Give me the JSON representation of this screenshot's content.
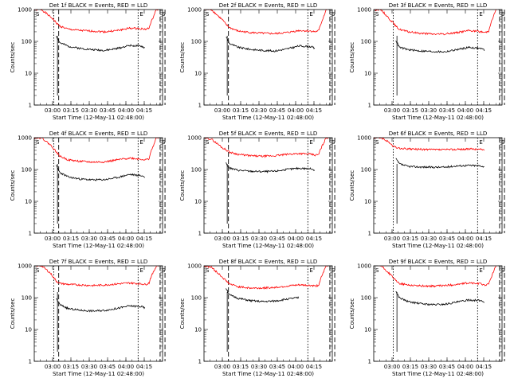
{
  "figure": {
    "ylabel": "Counts/sec",
    "xlabel": "Start Time (12-May-11 02:48:00)",
    "ytick_labels": [
      "1",
      "10",
      "100",
      "1000"
    ],
    "xtick_labels": [
      "03:00",
      "03:15",
      "03:30",
      "03:45",
      "04:00",
      "04:15"
    ],
    "marker_s": "S",
    "marker_e": "E",
    "colors": {
      "events": "#000000",
      "lld": "#ff0000",
      "axes": "#000000",
      "background": "#ffffff"
    }
  },
  "chart_data": [
    {
      "type": "line",
      "title": "Det 1f BLACK = Events, RED = LLD",
      "ylog": true,
      "ylim": [
        1,
        1000
      ],
      "xlim_minutes": [
        -3,
        102
      ],
      "x_minutes": [
        -3,
        3,
        10,
        12,
        15,
        18,
        25,
        35,
        45,
        55,
        65,
        75,
        85,
        88,
        91,
        92,
        97,
        99
      ],
      "series": [
        {
          "name": "",
          "values": [
            1000,
            1000,
            600,
            520,
            380,
            300,
            240,
            220,
            210,
            200,
            220,
            260,
            250,
            240,
            260,
            350,
            1000,
            1000
          ]
        },
        {
          "name": "",
          "values": [
            null,
            null,
            null,
            null,
            150,
            90,
            70,
            60,
            55,
            52,
            60,
            75,
            70,
            60,
            null,
            null,
            null,
            null
          ]
        }
      ],
      "markers_min": [
        13,
        17,
        82,
        100,
        104
      ]
    },
    {
      "type": "line",
      "title": "Det 2f BLACK = Events, RED = LLD",
      "ylog": true,
      "ylim": [
        1,
        1000
      ],
      "xlim_minutes": [
        -3,
        102
      ],
      "x_minutes": [
        -3,
        3,
        10,
        12,
        15,
        18,
        25,
        35,
        45,
        55,
        65,
        75,
        85,
        88,
        91,
        92,
        97,
        99
      ],
      "series": [
        {
          "name": "",
          "values": [
            1000,
            1000,
            560,
            480,
            340,
            270,
            210,
            190,
            180,
            175,
            190,
            220,
            210,
            200,
            220,
            300,
            1000,
            1000
          ]
        },
        {
          "name": "",
          "values": [
            null,
            null,
            null,
            null,
            140,
            85,
            65,
            56,
            52,
            50,
            58,
            72,
            68,
            58,
            null,
            null,
            null,
            null
          ]
        }
      ],
      "markers_min": [
        17,
        82,
        100,
        104
      ]
    },
    {
      "type": "line",
      "title": "Det 3f BLACK = Events, RED = LLD",
      "ylog": true,
      "ylim": [
        1,
        1000
      ],
      "xlim_minutes": [
        -3,
        102
      ],
      "x_minutes": [
        -3,
        3,
        10,
        12,
        15,
        18,
        25,
        35,
        45,
        55,
        65,
        75,
        85,
        88,
        91,
        92,
        97,
        99
      ],
      "series": [
        {
          "name": "",
          "values": [
            1000,
            1000,
            500,
            420,
            300,
            240,
            200,
            180,
            170,
            170,
            190,
            220,
            200,
            190,
            210,
            300,
            1000,
            1000
          ]
        },
        {
          "name": "",
          "values": [
            null,
            null,
            null,
            null,
            110,
            65,
            55,
            50,
            48,
            47,
            55,
            65,
            60,
            52,
            null,
            null,
            null,
            null
          ]
        }
      ],
      "markers_min": [
        13,
        82,
        100,
        104
      ]
    },
    {
      "type": "line",
      "title": "Det 4f BLACK = Events, RED = LLD",
      "ylog": true,
      "ylim": [
        1,
        1000
      ],
      "xlim_minutes": [
        -3,
        102
      ],
      "x_minutes": [
        -3,
        3,
        10,
        12,
        15,
        18,
        25,
        35,
        45,
        55,
        65,
        75,
        85,
        88,
        91,
        92,
        97,
        99
      ],
      "series": [
        {
          "name": "",
          "values": [
            1000,
            1000,
            600,
            500,
            360,
            260,
            200,
            180,
            170,
            175,
            200,
            230,
            210,
            200,
            220,
            320,
            1000,
            1000
          ]
        },
        {
          "name": "",
          "values": [
            null,
            null,
            null,
            null,
            130,
            80,
            58,
            50,
            47,
            48,
            56,
            70,
            64,
            56,
            null,
            null,
            null,
            null
          ]
        }
      ],
      "markers_min": [
        13,
        17,
        82,
        100,
        104
      ]
    },
    {
      "type": "line",
      "title": "Det 5f BLACK = Events, RED = LLD",
      "ylog": true,
      "ylim": [
        1,
        1000
      ],
      "xlim_minutes": [
        -3,
        102
      ],
      "x_minutes": [
        -3,
        3,
        10,
        12,
        15,
        18,
        25,
        35,
        45,
        55,
        65,
        75,
        85,
        88,
        91,
        92,
        97,
        99
      ],
      "series": [
        {
          "name": "",
          "values": [
            1000,
            900,
            560,
            480,
            420,
            350,
            300,
            270,
            260,
            270,
            300,
            320,
            300,
            280,
            300,
            400,
            1000,
            1000
          ]
        },
        {
          "name": "",
          "values": [
            null,
            null,
            null,
            null,
            160,
            110,
            95,
            88,
            86,
            88,
            100,
            110,
            105,
            95,
            null,
            null,
            null,
            null
          ]
        }
      ],
      "markers_min": [
        17,
        82,
        100,
        104
      ]
    },
    {
      "type": "line",
      "title": "Det 6f BLACK = Events, RED = LLD",
      "ylog": true,
      "ylim": [
        1,
        1000
      ],
      "xlim_minutes": [
        -3,
        102
      ],
      "x_minutes": [
        -3,
        3,
        10,
        12,
        15,
        18,
        25,
        35,
        45,
        55,
        65,
        75,
        85,
        88,
        91,
        92,
        97,
        99
      ],
      "series": [
        {
          "name": "",
          "values": [
            1000,
            1000,
            700,
            560,
            500,
            460,
            440,
            430,
            420,
            420,
            430,
            440,
            430,
            420,
            null,
            null,
            null,
            null
          ]
        },
        {
          "name": "",
          "values": [
            null,
            null,
            null,
            null,
            220,
            150,
            125,
            120,
            118,
            118,
            130,
            135,
            130,
            118,
            null,
            null,
            null,
            null
          ]
        }
      ],
      "markers_min": [
        13,
        82,
        100,
        104
      ]
    },
    {
      "type": "line",
      "title": "Det 7f BLACK = Events, RED = LLD",
      "ylog": true,
      "ylim": [
        1,
        1000
      ],
      "xlim_minutes": [
        -3,
        102
      ],
      "x_minutes": [
        -3,
        3,
        10,
        12,
        15,
        18,
        25,
        35,
        45,
        55,
        65,
        75,
        85,
        88,
        91,
        92,
        97,
        99
      ],
      "series": [
        {
          "name": "",
          "values": [
            1000,
            1000,
            600,
            480,
            330,
            280,
            260,
            250,
            240,
            250,
            270,
            290,
            270,
            260,
            290,
            400,
            1000,
            1000
          ]
        },
        {
          "name": "",
          "values": [
            null,
            null,
            null,
            null,
            95,
            60,
            45,
            40,
            38,
            40,
            46,
            55,
            52,
            46,
            null,
            null,
            null,
            null
          ]
        }
      ],
      "markers_min": [
        13,
        17,
        82,
        100,
        104
      ]
    },
    {
      "type": "line",
      "title": "Det 8f BLACK = Events, RED = LLD",
      "ylog": true,
      "ylim": [
        1,
        1000
      ],
      "xlim_minutes": [
        -3,
        102
      ],
      "x_minutes": [
        -3,
        3,
        10,
        12,
        15,
        18,
        25,
        35,
        45,
        55,
        65,
        75,
        85,
        88,
        91,
        92,
        97,
        99
      ],
      "series": [
        {
          "name": "",
          "values": [
            1000,
            900,
            520,
            440,
            340,
            270,
            220,
            200,
            200,
            210,
            230,
            250,
            240,
            230,
            250,
            350,
            1000,
            1000
          ]
        },
        {
          "name": "",
          "values": [
            null,
            null,
            null,
            null,
            200,
            120,
            95,
            80,
            75,
            78,
            90,
            100,
            null,
            null,
            null,
            null,
            null,
            null
          ]
        }
      ],
      "markers_min": [
        17,
        82,
        100,
        104
      ]
    },
    {
      "type": "line",
      "title": "Det 9f BLACK = Events, RED = LLD",
      "ylog": true,
      "ylim": [
        1,
        1000
      ],
      "xlim_minutes": [
        -3,
        102
      ],
      "x_minutes": [
        -3,
        3,
        10,
        12,
        15,
        18,
        25,
        35,
        45,
        55,
        65,
        75,
        85,
        88,
        91,
        92,
        97,
        99
      ],
      "series": [
        {
          "name": "",
          "values": [
            1000,
            1000,
            560,
            470,
            340,
            280,
            250,
            235,
            230,
            240,
            260,
            290,
            270,
            250,
            260,
            340,
            1000,
            1000
          ]
        },
        {
          "name": "",
          "values": [
            null,
            null,
            null,
            null,
            160,
            100,
            75,
            65,
            60,
            62,
            72,
            85,
            80,
            70,
            null,
            null,
            null,
            null
          ]
        }
      ],
      "markers_min": [
        13,
        82,
        100,
        104
      ]
    }
  ]
}
